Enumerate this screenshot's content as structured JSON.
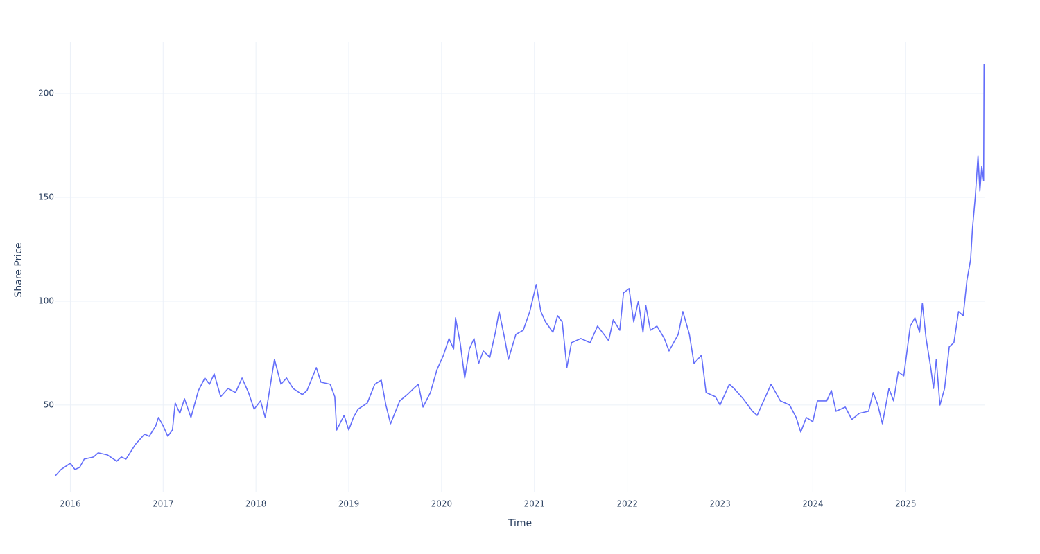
{
  "chart_data": {
    "type": "line",
    "x_label": "Time",
    "y_label": "Share Price",
    "xlim": [
      2015.84,
      2025.85
    ],
    "ylim": [
      8.3,
      225
    ],
    "xticks": [
      2016,
      2017,
      2018,
      2019,
      2020,
      2021,
      2022,
      2023,
      2024,
      2025
    ],
    "yticks": [
      50,
      100,
      150,
      200
    ],
    "grid": true,
    "series": [
      {
        "name": "Share Price",
        "color": "#636efa",
        "x": [
          2015.84,
          2015.9,
          2016.0,
          2016.05,
          2016.1,
          2016.15,
          2016.25,
          2016.3,
          2016.4,
          2016.5,
          2016.55,
          2016.6,
          2016.7,
          2016.8,
          2016.85,
          2016.92,
          2016.95,
          2017.0,
          2017.05,
          2017.1,
          2017.13,
          2017.18,
          2017.23,
          2017.3,
          2017.38,
          2017.45,
          2017.5,
          2017.55,
          2017.62,
          2017.7,
          2017.78,
          2017.85,
          2017.92,
          2017.98,
          2018.05,
          2018.1,
          2018.15,
          2018.2,
          2018.27,
          2018.33,
          2018.4,
          2018.5,
          2018.55,
          2018.65,
          2018.7,
          2018.8,
          2018.85,
          2018.87,
          2018.95,
          2019.0,
          2019.05,
          2019.1,
          2019.2,
          2019.28,
          2019.35,
          2019.4,
          2019.45,
          2019.55,
          2019.63,
          2019.7,
          2019.75,
          2019.8,
          2019.88,
          2019.95,
          2020.02,
          2020.08,
          2020.13,
          2020.15,
          2020.2,
          2020.25,
          2020.3,
          2020.35,
          2020.4,
          2020.45,
          2020.52,
          2020.58,
          2020.62,
          2020.68,
          2020.72,
          2020.8,
          2020.88,
          2020.95,
          2021.02,
          2021.07,
          2021.12,
          2021.2,
          2021.25,
          2021.3,
          2021.35,
          2021.4,
          2021.5,
          2021.6,
          2021.68,
          2021.75,
          2021.8,
          2021.85,
          2021.92,
          2021.96,
          2022.02,
          2022.07,
          2022.12,
          2022.17,
          2022.2,
          2022.25,
          2022.32,
          2022.4,
          2022.45,
          2022.55,
          2022.6,
          2022.67,
          2022.72,
          2022.8,
          2022.85,
          2022.95,
          2023.0,
          2023.1,
          2023.15,
          2023.25,
          2023.35,
          2023.4,
          2023.5,
          2023.55,
          2023.65,
          2023.75,
          2023.82,
          2023.87,
          2023.93,
          2024.0,
          2024.05,
          2024.15,
          2024.2,
          2024.25,
          2024.35,
          2024.42,
          2024.5,
          2024.6,
          2024.65,
          2024.7,
          2024.75,
          2024.82,
          2024.87,
          2024.92,
          2024.98,
          2025.05,
          2025.1,
          2025.15,
          2025.18,
          2025.22,
          2025.27,
          2025.3,
          2025.33,
          2025.37,
          2025.42,
          2025.47,
          2025.52,
          2025.57,
          2025.62,
          2025.66,
          2025.7,
          2025.72,
          2025.75,
          2025.78,
          2025.8,
          2025.82,
          2025.84,
          2025.845
        ],
        "values": [
          16,
          19,
          22,
          19,
          20,
          24,
          25,
          27,
          26,
          23,
          25,
          24,
          31,
          36,
          35,
          40,
          44,
          40,
          35,
          38,
          51,
          46,
          53,
          44,
          57,
          63,
          60,
          65,
          54,
          58,
          56,
          63,
          56,
          48,
          52,
          44,
          58,
          72,
          60,
          63,
          58,
          55,
          57,
          68,
          61,
          60,
          54,
          38,
          45,
          38,
          44,
          48,
          51,
          60,
          62,
          50,
          41,
          52,
          55,
          58,
          60,
          49,
          56,
          67,
          74,
          82,
          77,
          92,
          80,
          63,
          77,
          82,
          70,
          76,
          73,
          85,
          95,
          82,
          72,
          84,
          86,
          95,
          108,
          95,
          90,
          85,
          93,
          90,
          68,
          80,
          82,
          80,
          88,
          84,
          81,
          91,
          86,
          104,
          106,
          90,
          100,
          85,
          98,
          86,
          88,
          82,
          76,
          84,
          95,
          84,
          70,
          74,
          56,
          54,
          50,
          60,
          58,
          53,
          47,
          45,
          55,
          60,
          52,
          50,
          44,
          37,
          44,
          42,
          52,
          52,
          57,
          47,
          49,
          43,
          46,
          47,
          56,
          50,
          41,
          58,
          52,
          66,
          64,
          88,
          92,
          85,
          99,
          82,
          68,
          58,
          72,
          50,
          58,
          78,
          80,
          95,
          93,
          110,
          120,
          135,
          150,
          170,
          153,
          165,
          158,
          214
        ]
      }
    ]
  }
}
